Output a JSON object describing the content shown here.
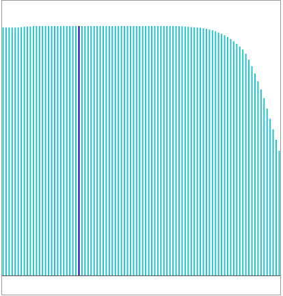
{
  "chart_data": {
    "type": "bar",
    "title": "",
    "xlabel": "",
    "ylabel": "",
    "ylim": [
      0,
      1
    ],
    "grid": false,
    "legend": "none",
    "bar_color": "#22c3c8",
    "highlight_color": "#0000a8",
    "highlight_index": 25,
    "values": [
      0.994,
      0.994,
      0.994,
      0.994,
      0.994,
      0.994,
      0.996,
      0.997,
      0.998,
      0.998,
      1.0,
      1.0,
      1.0,
      1.0,
      1.0,
      1.0,
      1.0,
      1.0,
      1.0,
      1.0,
      1.0,
      1.0,
      1.0,
      1.0,
      1.0,
      1.0,
      1.0,
      1.0,
      1.0,
      1.0,
      1.0,
      1.0,
      1.0,
      1.0,
      1.0,
      1.0,
      1.0,
      1.0,
      1.0,
      1.0,
      1.0,
      1.0,
      1.0,
      1.0,
      1.0,
      1.0,
      1.0,
      1.0,
      1.0,
      1.0,
      1.0,
      1.0,
      1.0,
      1.0,
      1.0,
      1.0,
      1.0,
      1.0,
      0.999,
      0.999,
      0.998,
      0.997,
      0.996,
      0.995,
      0.994,
      0.993,
      0.991,
      0.989,
      0.986,
      0.983,
      0.979,
      0.974,
      0.969,
      0.963,
      0.956,
      0.948,
      0.939,
      0.929,
      0.918,
      0.906,
      0.889,
      0.865,
      0.839,
      0.81,
      0.779,
      0.746,
      0.711,
      0.669,
      0.628,
      0.586,
      0.544,
      0.5
    ]
  }
}
